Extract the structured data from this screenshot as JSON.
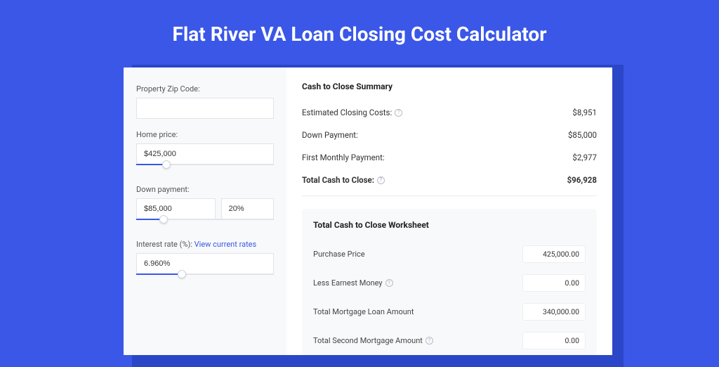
{
  "page": {
    "title": "Flat River VA Loan Closing Cost Calculator"
  },
  "colors": {
    "page_bg": "#3a57e8",
    "panel_shadow": "#2c46c8",
    "panel_bg": "#ffffff",
    "left_bg": "#f8f9fb",
    "input_border": "#e2e4ea",
    "link": "#3a57e8",
    "text_primary": "#333333",
    "text_muted": "#555555"
  },
  "form": {
    "zip": {
      "label": "Property Zip Code:",
      "value": ""
    },
    "home_price": {
      "label": "Home price:",
      "value": "$425,000",
      "slider_pct": 22
    },
    "down_payment": {
      "label": "Down payment:",
      "value": "$85,000",
      "pct_value": "20%",
      "slider_pct": 20
    },
    "interest_rate": {
      "label": "Interest rate (%):",
      "link_text": "View current rates",
      "value": "6.960%",
      "slider_pct": 33
    }
  },
  "summary": {
    "title": "Cash to Close Summary",
    "rows": [
      {
        "label": "Estimated Closing Costs:",
        "value": "$8,951",
        "help": true,
        "bold": false
      },
      {
        "label": "Down Payment:",
        "value": "$85,000",
        "help": false,
        "bold": false
      },
      {
        "label": "First Monthly Payment:",
        "value": "$2,977",
        "help": false,
        "bold": false
      },
      {
        "label": "Total Cash to Close:",
        "value": "$96,928",
        "help": true,
        "bold": true
      }
    ]
  },
  "worksheet": {
    "title": "Total Cash to Close Worksheet",
    "rows": [
      {
        "label": "Purchase Price",
        "value": "425,000.00",
        "help": false
      },
      {
        "label": "Less Earnest Money",
        "value": "0.00",
        "help": true
      },
      {
        "label": "Total Mortgage Loan Amount",
        "value": "340,000.00",
        "help": false
      },
      {
        "label": "Total Second Mortgage Amount",
        "value": "0.00",
        "help": true
      }
    ]
  }
}
